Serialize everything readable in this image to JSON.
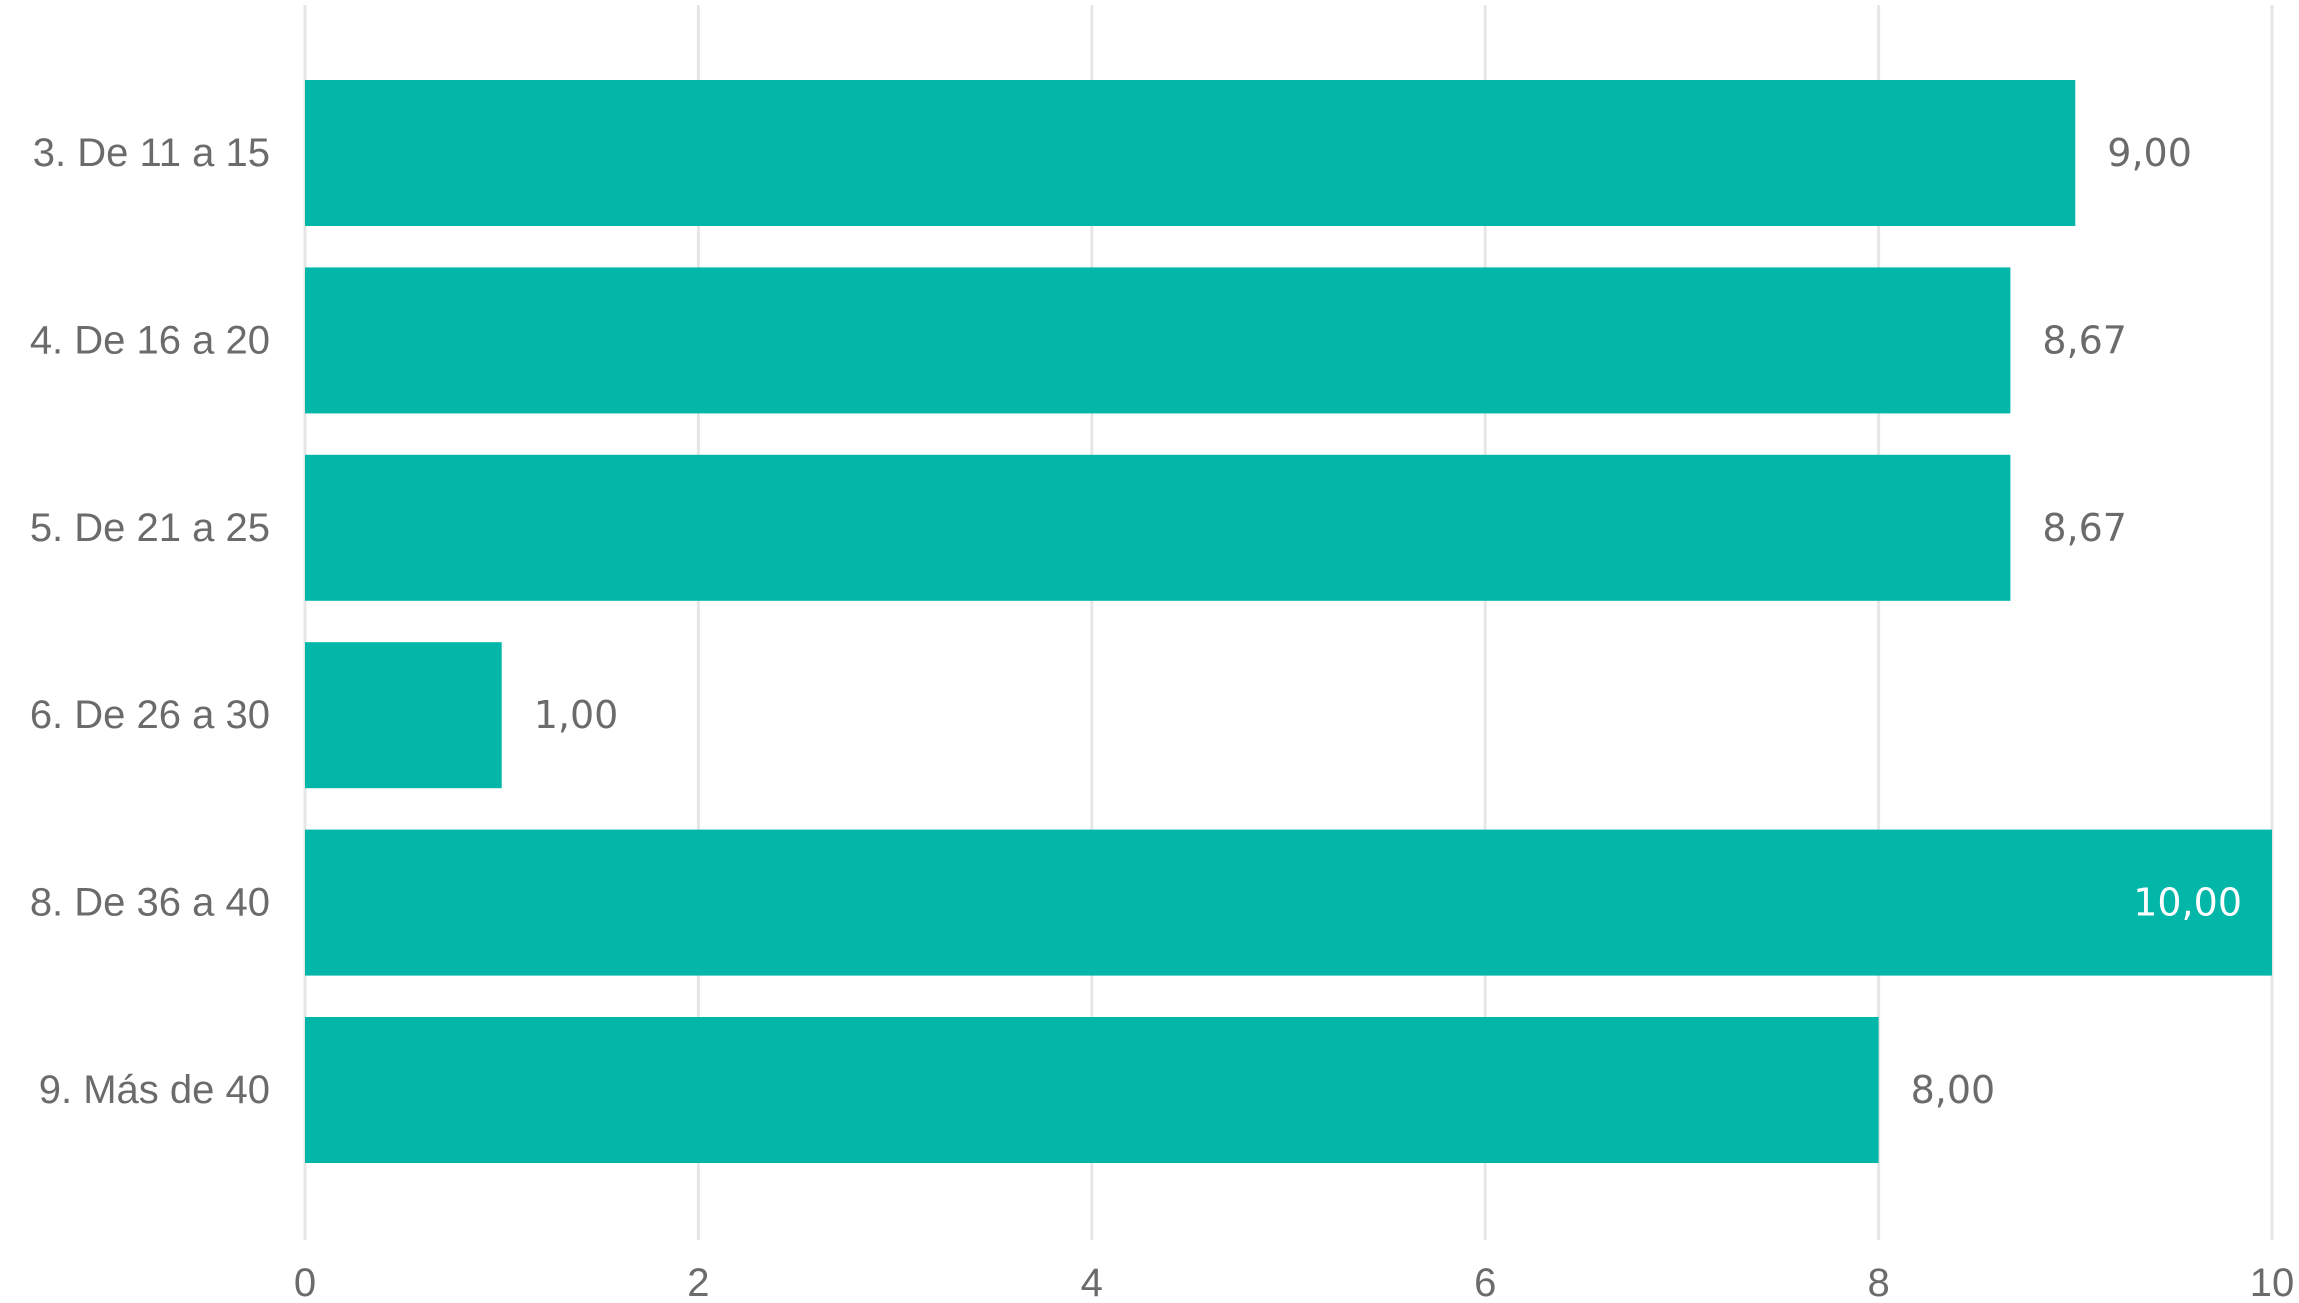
{
  "chart_data": {
    "type": "bar",
    "orientation": "horizontal",
    "categories": [
      "3. De 11 a 15",
      "4. De 16 a 20",
      "5. De 21 a 25",
      "6. De 26 a 30",
      "8. De 36 a 40",
      "9. Más de 40"
    ],
    "values": [
      9.0,
      8.67,
      8.67,
      1.0,
      10.0,
      8.0
    ],
    "value_labels": [
      "9,00",
      "8,67",
      "8,67",
      "1,00",
      "10,00",
      "8,00"
    ],
    "xlim": [
      0,
      10
    ],
    "xticks": [
      0,
      2,
      4,
      6,
      8,
      10
    ],
    "xtick_labels": [
      "0",
      "2",
      "4",
      "6",
      "8",
      "10"
    ],
    "title": "",
    "xlabel": "",
    "ylabel": "",
    "grid": "vertical",
    "legend": "none",
    "colors": {
      "bar": "#02B6A8",
      "grid": "#E6E6E6",
      "text": "#6B6B6B",
      "label_inside": "#FFFFFF"
    }
  }
}
